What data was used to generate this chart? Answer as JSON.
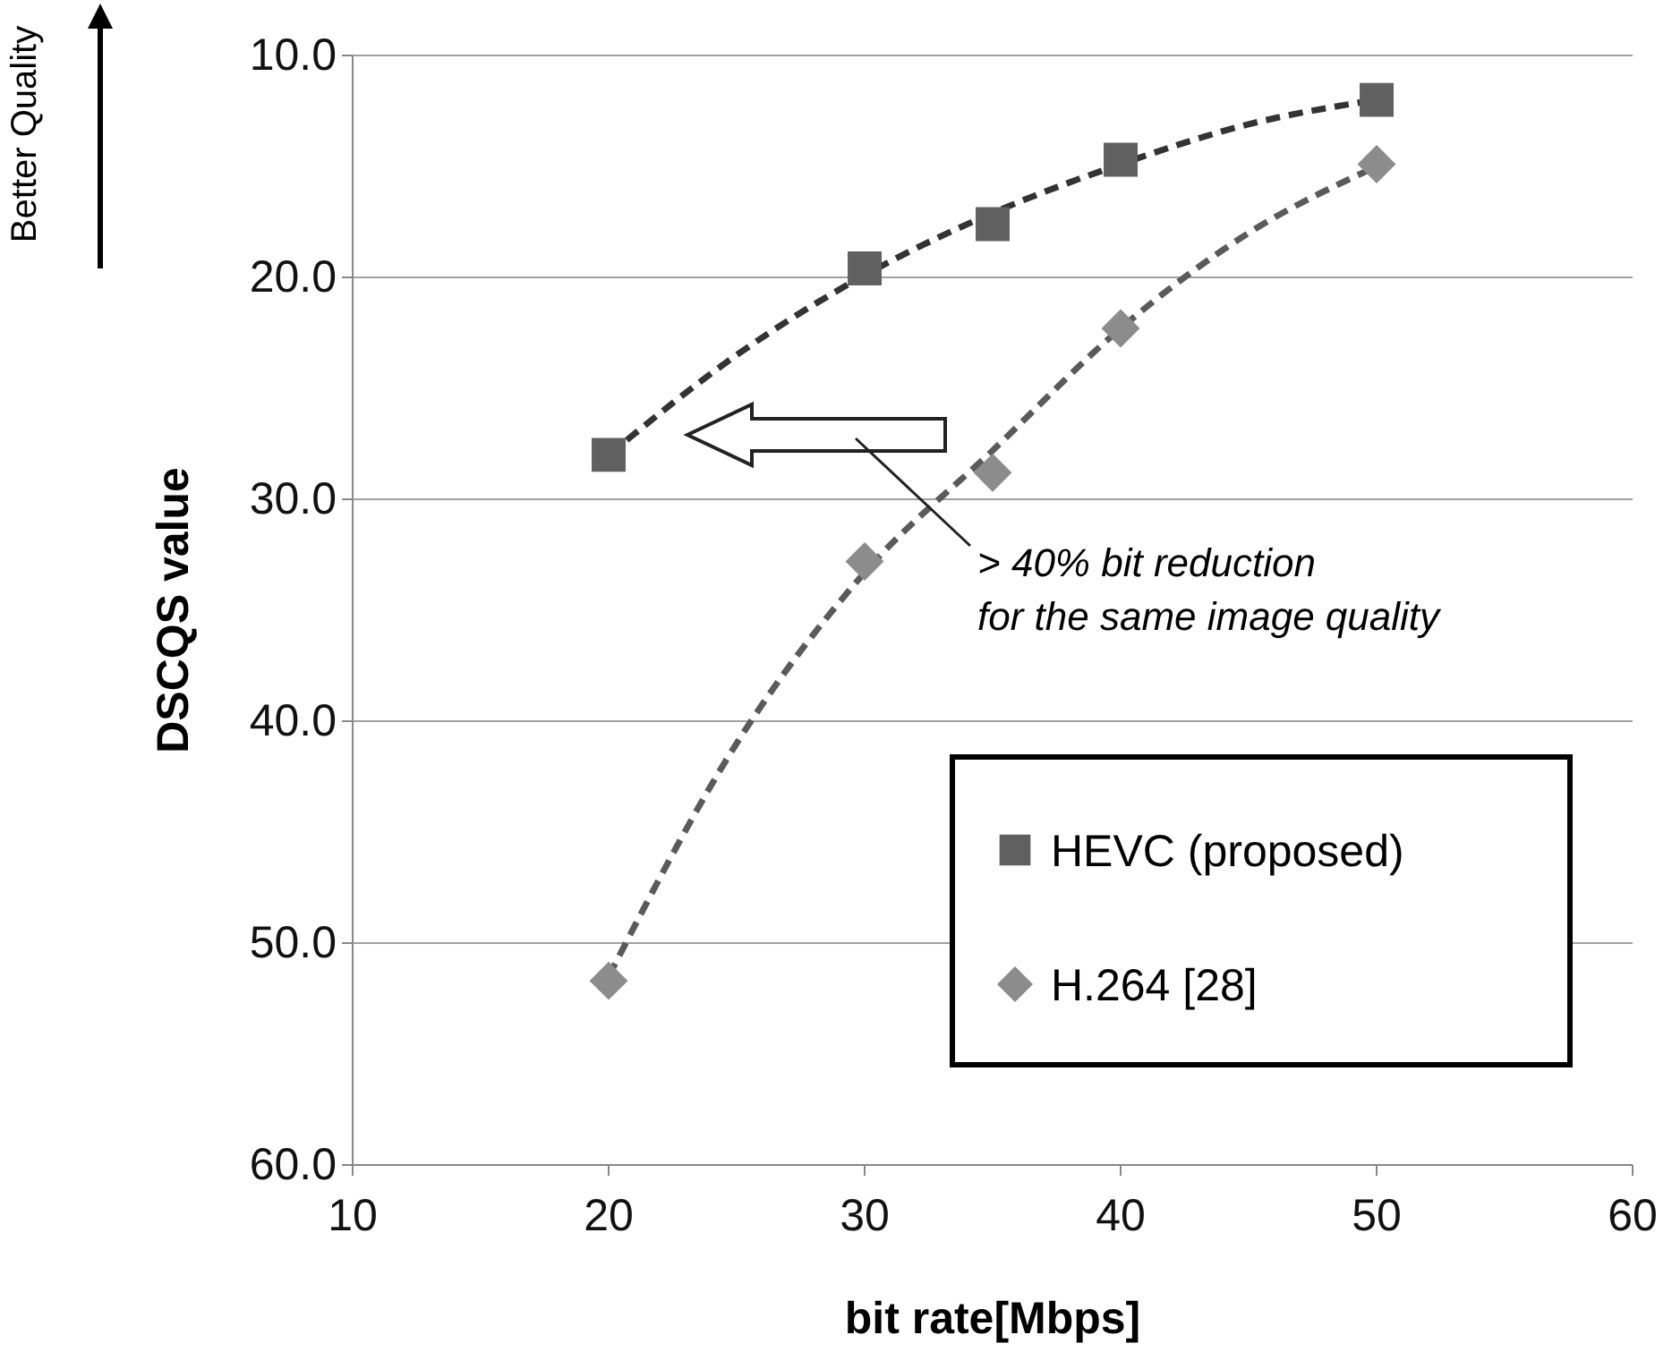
{
  "chart_data": {
    "type": "scatter",
    "xlabel": "bit rate[Mbps]",
    "ylabel": "DSCQS value",
    "xlim": [
      10,
      60
    ],
    "xticks": [
      10,
      20,
      30,
      40,
      50,
      60
    ],
    "ylim": [
      60,
      10
    ],
    "yticks": [
      {
        "value": 10,
        "label": "10.0"
      },
      {
        "value": 20,
        "label": "20.0"
      },
      {
        "value": 30,
        "label": "30.0"
      },
      {
        "value": 40,
        "label": "40.0"
      },
      {
        "value": 50,
        "label": "50.0"
      },
      {
        "value": 60,
        "label": "60.0"
      }
    ],
    "grid": "y",
    "legend": "bottom right",
    "series": [
      {
        "name": "HEVC (proposed)",
        "color": "#606060",
        "marker": "square",
        "x": [
          20,
          30,
          35,
          40,
          50
        ],
        "values": [
          28.0,
          19.6,
          17.6,
          14.7,
          12.0
        ]
      },
      {
        "name": "H.264 [28]",
        "color": "#8c8c8c",
        "marker": "diamond",
        "x": [
          20,
          30,
          35,
          40,
          50
        ],
        "values": [
          51.7,
          32.8,
          28.8,
          22.3,
          14.9
        ]
      },
      {
        "type": "line",
        "color": "#333333",
        "line_style": "dashed",
        "marker": "none",
        "x": [
          20,
          25,
          30,
          35,
          40,
          45,
          50
        ],
        "values": [
          28.0,
          23.5,
          19.9,
          17.1,
          14.9,
          13.1,
          12.0
        ]
      },
      {
        "type": "line",
        "color": "#5a5a5a",
        "line_style": "dashed",
        "marker": "none",
        "x": [
          20,
          25,
          30,
          35,
          40,
          45,
          50
        ],
        "values": [
          51.5,
          41.0,
          33.3,
          27.8,
          22.3,
          18.0,
          15.0
        ]
      }
    ],
    "annotations": [
      "> 40% bit reduction\nfor the same image quality",
      "Better Quality"
    ]
  }
}
